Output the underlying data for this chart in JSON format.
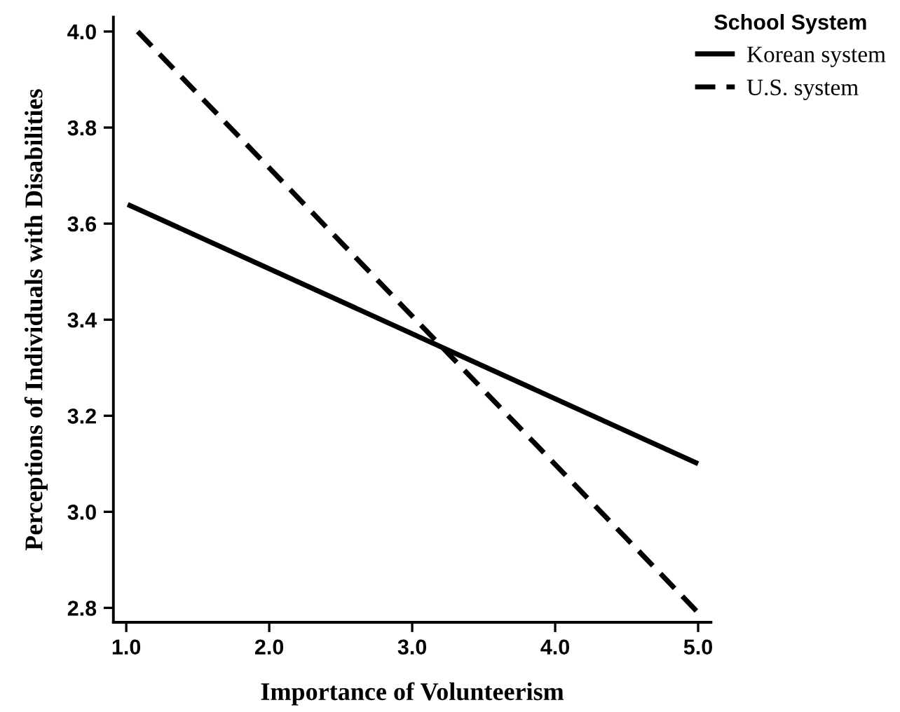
{
  "chart_data": {
    "type": "line",
    "xlabel": "Importance of Volunteerism",
    "ylabel": "Perceptions of Individuals with Disabilities",
    "legend_title": "School System",
    "legend": "top right",
    "grid": false,
    "marker": "none",
    "xlim": [
      0.91,
      5.09
    ],
    "ylim": [
      2.77,
      4.03
    ],
    "xticks": [
      {
        "value": 1,
        "label": "1.0"
      },
      {
        "value": 2,
        "label": "2.0"
      },
      {
        "value": 3,
        "label": "3.0"
      },
      {
        "value": 4,
        "label": "4.0"
      },
      {
        "value": 5,
        "label": "5.0"
      }
    ],
    "yticks": [
      2.8,
      {
        "value": 3,
        "label": "3.0"
      },
      3.2,
      3.4,
      3.6,
      3.8,
      {
        "value": 4,
        "label": "4.0"
      }
    ],
    "series": [
      {
        "name": "Korean system",
        "color": "#000000",
        "line_style": "solid",
        "x": [
          1.01,
          5.0
        ],
        "values": [
          3.64,
          3.1
        ]
      },
      {
        "name": "U.S. system",
        "color": "#000000",
        "line_style": "dashed",
        "x": [
          1.08,
          5.0
        ],
        "values": [
          4.0,
          2.79
        ]
      }
    ]
  }
}
